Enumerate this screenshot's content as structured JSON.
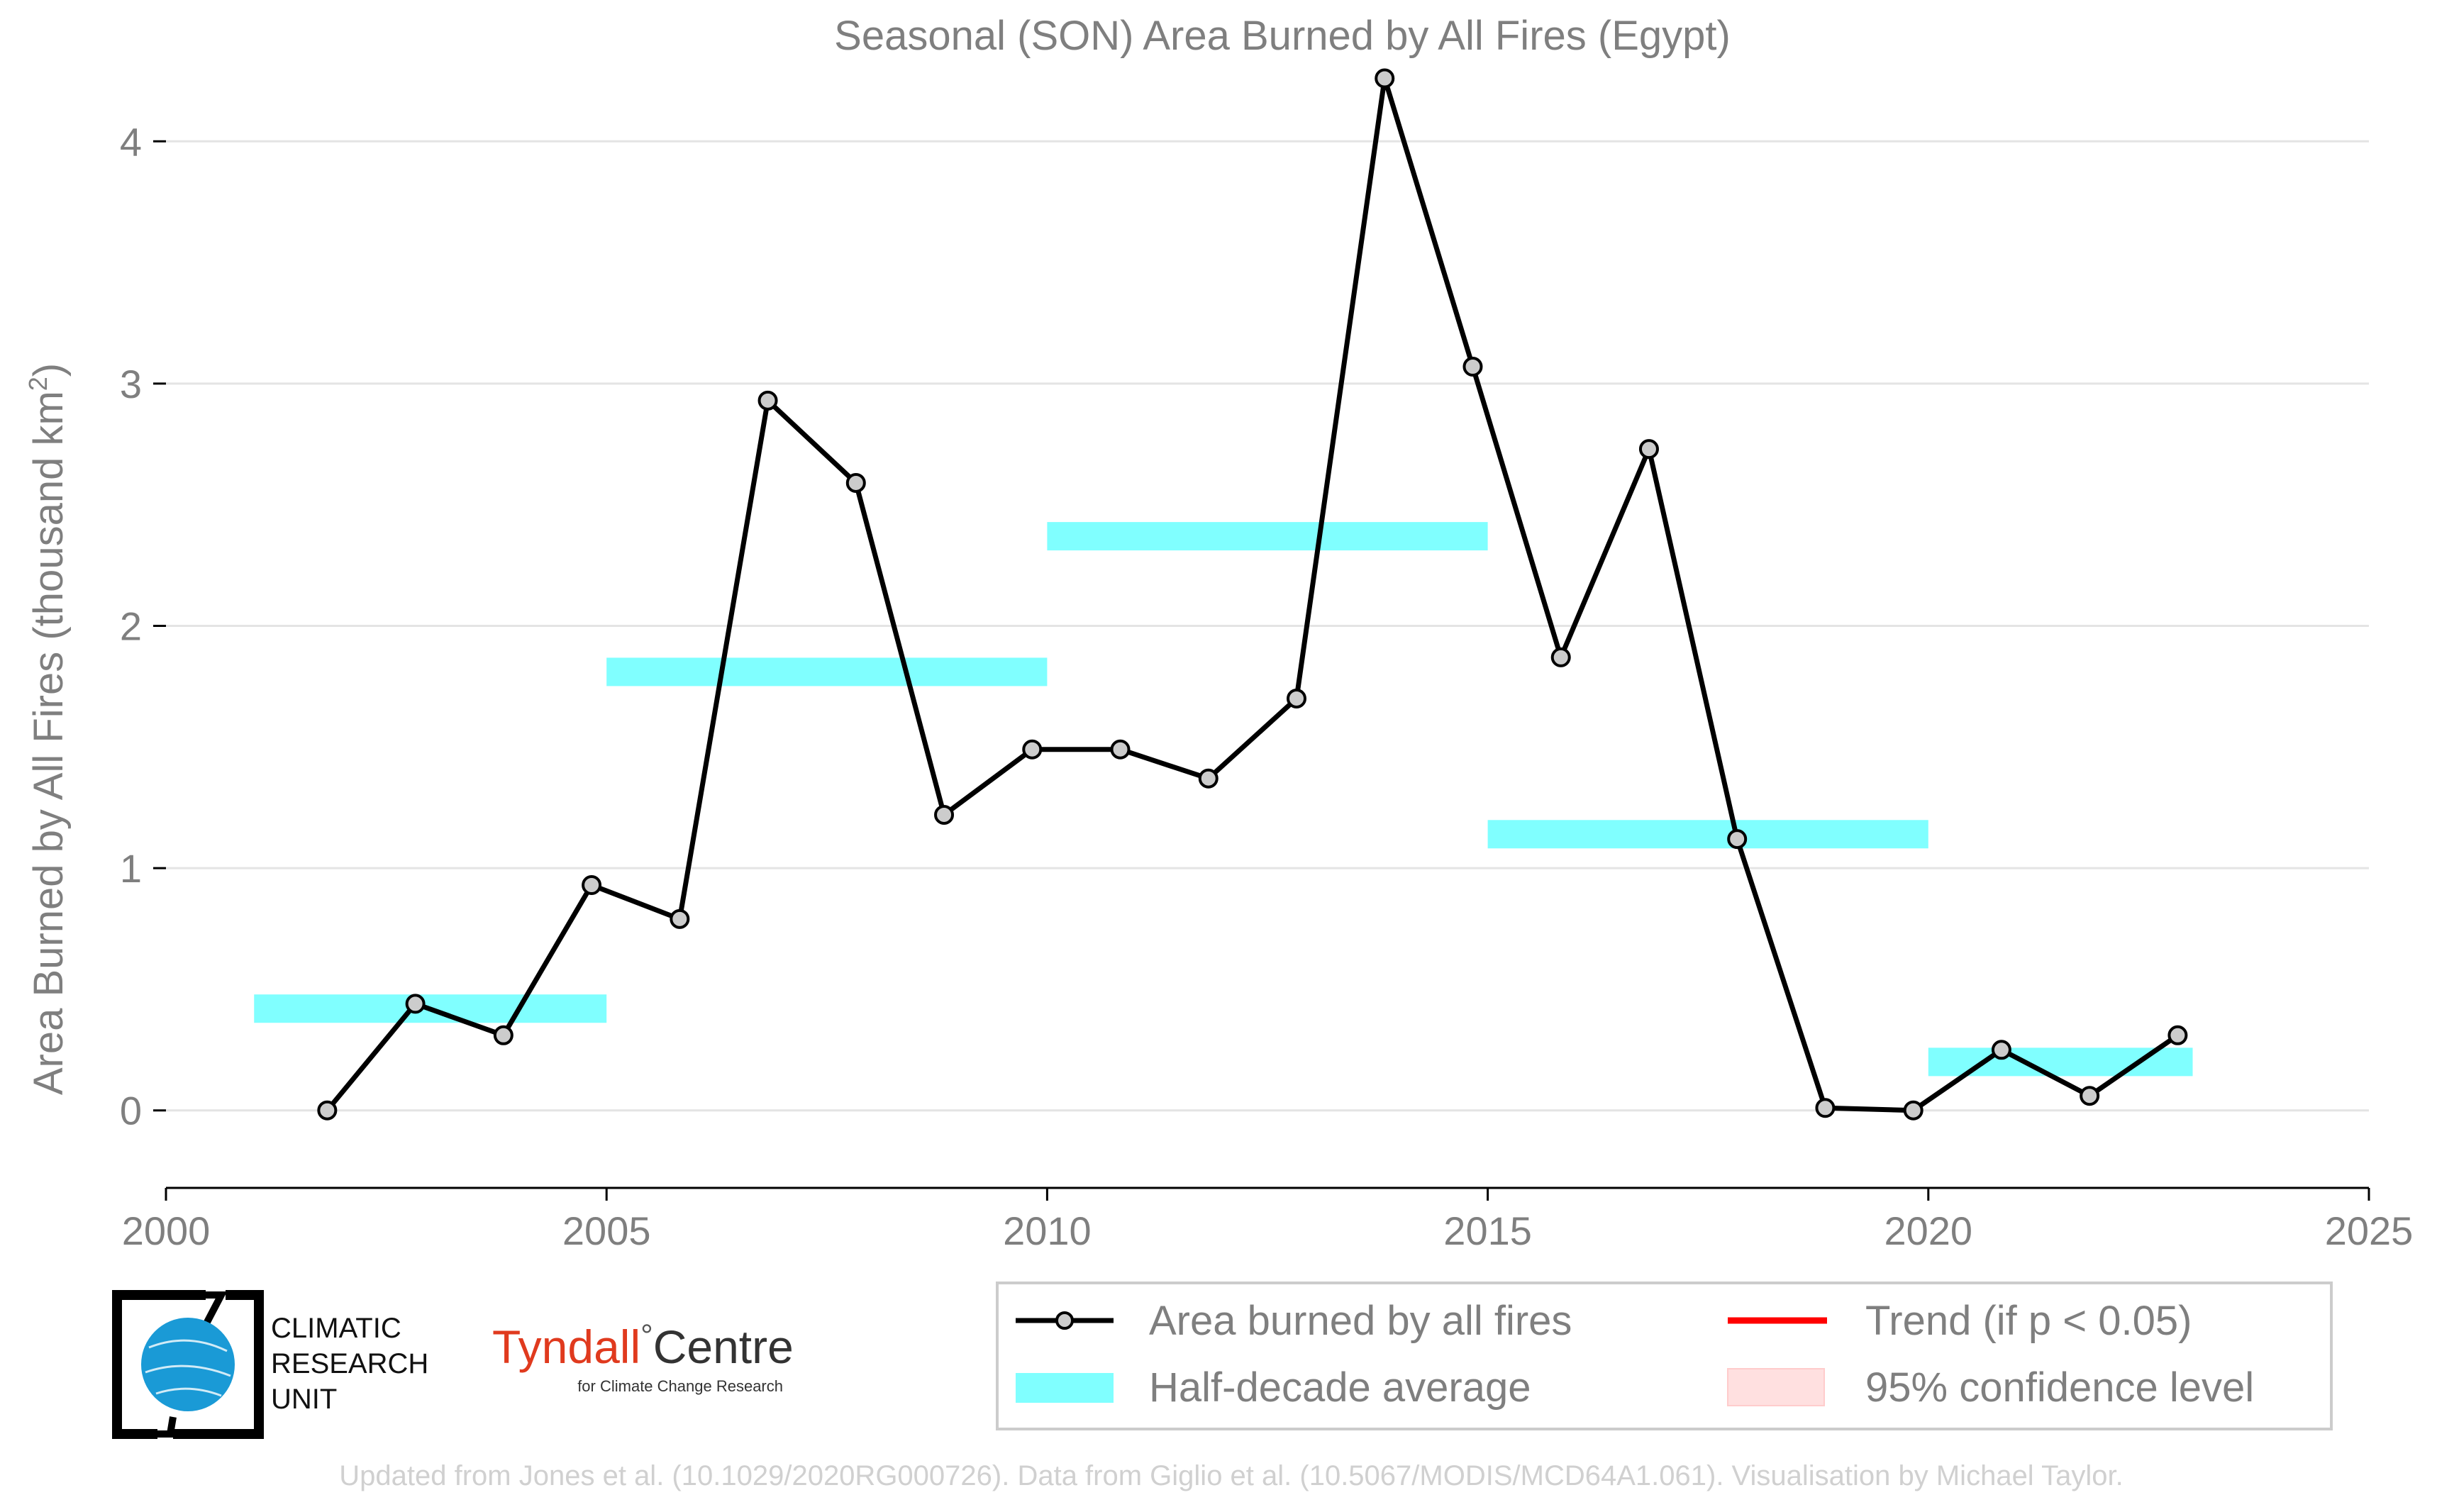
{
  "chart_data": {
    "type": "line",
    "title": "Seasonal (SON) Area Burned by All Fires (Egypt)",
    "ylabel": "Area Burned by All Fires (thousand km",
    "ylabel_sup": "2",
    "ylabel_close": ")",
    "xlim": [
      2000,
      2025
    ],
    "ylim": [
      -0.32,
      4.32
    ],
    "x_ticks": [
      2000,
      2005,
      2010,
      2015,
      2020,
      2025
    ],
    "x_tick_labels": [
      "2000",
      "2005",
      "2010",
      "2015",
      "2020",
      "2025"
    ],
    "y_ticks": [
      0,
      1,
      2,
      3,
      4
    ],
    "y_tick_labels": [
      "0",
      "1",
      "2",
      "3",
      "4"
    ],
    "grid": "horizontal",
    "series": [
      {
        "name": "Area burned by all fires",
        "color": "#000000",
        "marker_fill": "#cccccc",
        "x": [
          2001.83,
          2002.83,
          2003.83,
          2004.83,
          2005.83,
          2006.83,
          2007.83,
          2008.83,
          2009.83,
          2010.83,
          2011.83,
          2012.83,
          2013.83,
          2014.83,
          2015.83,
          2016.83,
          2017.83,
          2018.83,
          2019.83,
          2020.83,
          2021.83,
          2022.83
        ],
        "values": [
          0.0,
          0.44,
          0.31,
          0.93,
          0.79,
          2.93,
          2.59,
          1.22,
          1.49,
          1.49,
          1.37,
          1.7,
          4.26,
          3.07,
          1.87,
          2.73,
          1.12,
          0.01,
          0.0,
          0.25,
          0.06,
          0.31
        ]
      }
    ],
    "half_decade_average": {
      "name": "Half-decade average",
      "color": "#80ffff",
      "segments": [
        {
          "x_start": 2001,
          "x_end": 2005,
          "value": 0.42
        },
        {
          "x_start": 2005,
          "x_end": 2010,
          "value": 1.81
        },
        {
          "x_start": 2010,
          "x_end": 2015,
          "value": 2.37
        },
        {
          "x_start": 2015,
          "x_end": 2020,
          "value": 1.14
        },
        {
          "x_start": 2020,
          "x_end": 2023,
          "value": 0.2
        }
      ]
    },
    "legend": [
      {
        "key": "line",
        "label": "Area burned by all fires",
        "color": "#000000"
      },
      {
        "key": "trend",
        "label": "Trend (if p < 0.05)",
        "color": "#ff0000"
      },
      {
        "key": "band",
        "label": "Half-decade average",
        "color": "#80ffff"
      },
      {
        "key": "ci",
        "label": "95% confidence level",
        "color": "#ffe0e0"
      }
    ],
    "legend_position": "bottom-right"
  },
  "logos": {
    "cru_lines": [
      "CLIMATIC",
      "RESEARCH",
      "UNIT"
    ],
    "tyndall_name": "Tyndall",
    "tyndall_degree": "°",
    "tyndall_centre": "Centre",
    "tyndall_sub": "for Climate Change Research",
    "tyndall_color": "#e03a1e",
    "cru_blue": "#1a9ad6"
  },
  "credit": "Updated from Jones et al. (10.1029/2020RG000726). Data from Giglio et al. (10.5067/MODIS/MCD64A1.061). Visualisation by Michael Taylor."
}
